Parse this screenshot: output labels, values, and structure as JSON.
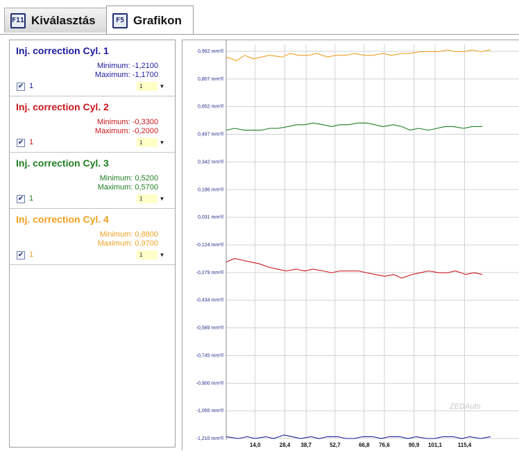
{
  "tabs": [
    {
      "key": "F11",
      "label": "Kiválasztás"
    },
    {
      "key": "F5",
      "label": "Grafikon"
    }
  ],
  "cylinders": [
    {
      "title": "Inj. correction Cyl. 1",
      "minimum": "Minimum: -1,2100",
      "maximum": "Maximum: -1,1700",
      "check_label": "1",
      "select_value": "1",
      "color": "#1a1a9c"
    },
    {
      "title": "Inj. correction Cyl. 2",
      "minimum": "Minimum: -0,3300",
      "maximum": "Maximum: -0,2000",
      "check_label": "1",
      "select_value": "1",
      "color": "#c8161b"
    },
    {
      "title": "Inj. correction Cyl. 3",
      "minimum": "Minimum: 0,5200",
      "maximum": "Maximum: 0,5700",
      "check_label": "1",
      "select_value": "1",
      "color": "#1e7e1e"
    },
    {
      "title": "Inj. correction Cyl. 4",
      "minimum": "Minimum: 0,8800",
      "maximum": "Maximum: 0,9700",
      "check_label": "1",
      "select_value": "1",
      "color": "#f0a020"
    }
  ],
  "watermark": "ZEDAuto",
  "chart_data": {
    "type": "line",
    "ylim": [
      -1.21,
      0.962
    ],
    "xlim": [
      0,
      130
    ],
    "y_tick_labels": [
      "0,962 mm³/l",
      "0,807 mm³/l",
      "0,652 mm³/l",
      "0,497 mm³/l",
      "0,342 mm³/l",
      "0,186 mm³/l",
      "0,031 mm³/l",
      "-0,124 mm³/l",
      "-0,279 mm³/l",
      "-0,434 mm³/l",
      "-0,589 mm³/l",
      "-0,745 mm³/l",
      "-0,900 mm³/l",
      "-1,055 mm³/l",
      "-1,210 mm³/l"
    ],
    "y_tick_values": [
      0.962,
      0.807,
      0.652,
      0.497,
      0.342,
      0.186,
      0.031,
      -0.124,
      -0.279,
      -0.434,
      -0.589,
      -0.745,
      -0.9,
      -1.055,
      -1.21
    ],
    "x_tick_labels": [
      "14,0",
      "28,4",
      "38,7",
      "52,7",
      "66,8",
      "76,6",
      "90,9",
      "101,1",
      "115,4"
    ],
    "x_tick_values": [
      14.0,
      28.4,
      38.7,
      52.7,
      66.8,
      76.6,
      90.9,
      101.1,
      115.4
    ],
    "grid": true,
    "series": [
      {
        "color": "#f0a020",
        "x": [
          0,
          5,
          9,
          13,
          17,
          21,
          27,
          31,
          35,
          40,
          44,
          49,
          53,
          58,
          62,
          67,
          71,
          76,
          80,
          85,
          89,
          94,
          98,
          103,
          107,
          111,
          115,
          119,
          123,
          128
        ],
        "y": [
          0.93,
          0.91,
          0.94,
          0.92,
          0.93,
          0.94,
          0.93,
          0.95,
          0.94,
          0.94,
          0.95,
          0.93,
          0.94,
          0.94,
          0.95,
          0.94,
          0.94,
          0.95,
          0.94,
          0.95,
          0.95,
          0.96,
          0.96,
          0.96,
          0.97,
          0.96,
          0.96,
          0.97,
          0.96,
          0.97
        ]
      },
      {
        "color": "#1e7e1e",
        "x": [
          0,
          4,
          9,
          13,
          17,
          21,
          25,
          30,
          34,
          38,
          42,
          47,
          51,
          55,
          59,
          64,
          68,
          72,
          76,
          81,
          85,
          89,
          93,
          98,
          102,
          106,
          110,
          115,
          119,
          124
        ],
        "y": [
          0.52,
          0.53,
          0.52,
          0.52,
          0.52,
          0.53,
          0.53,
          0.54,
          0.55,
          0.55,
          0.56,
          0.55,
          0.54,
          0.55,
          0.55,
          0.56,
          0.56,
          0.55,
          0.54,
          0.55,
          0.54,
          0.52,
          0.53,
          0.52,
          0.53,
          0.54,
          0.54,
          0.53,
          0.54,
          0.54
        ]
      },
      {
        "color": "#c8161b",
        "x": [
          0,
          4,
          8,
          12,
          16,
          21,
          25,
          29,
          34,
          38,
          42,
          47,
          51,
          55,
          60,
          64,
          68,
          72,
          77,
          81,
          85,
          90,
          94,
          98,
          103,
          107,
          111,
          116,
          120,
          124
        ],
        "y": [
          -0.22,
          -0.2,
          -0.21,
          -0.22,
          -0.23,
          -0.25,
          -0.26,
          -0.27,
          -0.26,
          -0.27,
          -0.26,
          -0.27,
          -0.28,
          -0.27,
          -0.27,
          -0.27,
          -0.28,
          -0.29,
          -0.3,
          -0.29,
          -0.31,
          -0.29,
          -0.28,
          -0.27,
          -0.28,
          -0.28,
          -0.27,
          -0.29,
          -0.28,
          -0.29
        ]
      },
      {
        "color": "#1a1a9c",
        "x": [
          0,
          6,
          10,
          14,
          19,
          23,
          28,
          32,
          36,
          41,
          45,
          49,
          54,
          58,
          62,
          66,
          71,
          75,
          79,
          84,
          88,
          92,
          97,
          101,
          105,
          110,
          114,
          118,
          123,
          128
        ],
        "y": [
          -1.2,
          -1.21,
          -1.2,
          -1.21,
          -1.2,
          -1.21,
          -1.19,
          -1.2,
          -1.21,
          -1.2,
          -1.21,
          -1.2,
          -1.2,
          -1.21,
          -1.21,
          -1.2,
          -1.2,
          -1.21,
          -1.2,
          -1.2,
          -1.21,
          -1.2,
          -1.21,
          -1.21,
          -1.2,
          -1.2,
          -1.21,
          -1.2,
          -1.21,
          -1.2
        ]
      }
    ]
  }
}
